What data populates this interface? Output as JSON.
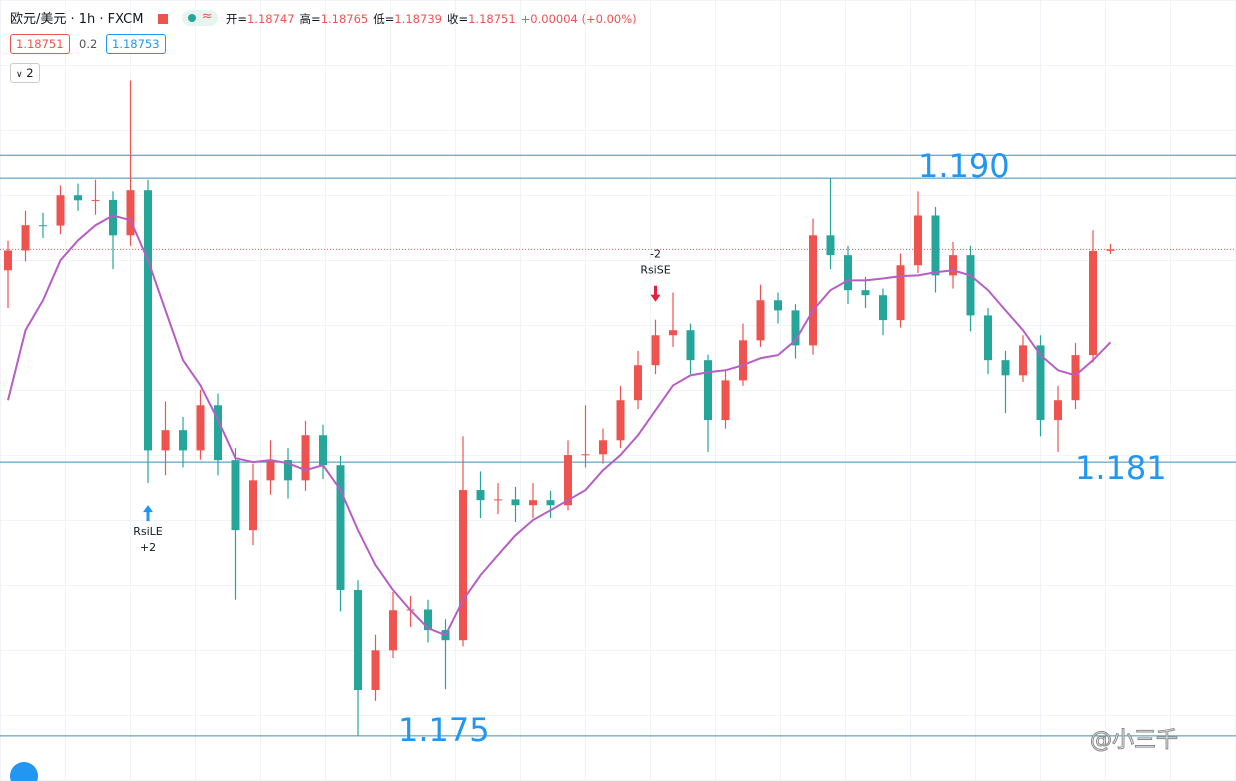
{
  "header": {
    "title": "欧元/美元 · 1h · FXCM",
    "ohlc": [
      {
        "label": "开=",
        "value": "1.18747"
      },
      {
        "label": "高=",
        "value": "1.18765"
      },
      {
        "label": "低=",
        "value": "1.18739"
      },
      {
        "label": "收=",
        "value": "1.18751"
      }
    ],
    "change": "+0.00004 (+0.00%)",
    "sell": "1.18751",
    "spread": "0.2",
    "buy": "1.18753",
    "indicators": "2"
  },
  "watermark": "@小三千",
  "chart_data": {
    "type": "candlestick",
    "ylim": [
      1.17384,
      1.19392
    ],
    "up_color": "#ef5350",
    "down_color": "#26a69a",
    "ohlc": [
      [
        1.18697,
        1.18773,
        1.186,
        1.18748
      ],
      [
        1.18748,
        1.1885,
        1.1872,
        1.18813
      ],
      [
        1.18813,
        1.18845,
        1.1878,
        1.18812
      ],
      [
        1.18812,
        1.18915,
        1.1879,
        1.1889
      ],
      [
        1.1889,
        1.1892,
        1.1885,
        1.18877
      ],
      [
        1.18877,
        1.1893,
        1.1884,
        1.18878
      ],
      [
        1.18878,
        1.189,
        1.187,
        1.18787
      ],
      [
        1.18787,
        1.19185,
        1.1876,
        1.18903
      ],
      [
        1.18903,
        1.1893,
        1.1815,
        1.18234
      ],
      [
        1.18234,
        1.1836,
        1.1817,
        1.18286
      ],
      [
        1.18286,
        1.1832,
        1.1819,
        1.18234
      ],
      [
        1.18234,
        1.1839,
        1.1821,
        1.1835
      ],
      [
        1.1835,
        1.1838,
        1.1817,
        1.18209
      ],
      [
        1.18209,
        1.1824,
        1.1785,
        1.18029
      ],
      [
        1.18029,
        1.182,
        1.1799,
        1.18157
      ],
      [
        1.18157,
        1.1826,
        1.1812,
        1.18209
      ],
      [
        1.18209,
        1.1824,
        1.1811,
        1.18157
      ],
      [
        1.18157,
        1.1831,
        1.1813,
        1.18273
      ],
      [
        1.18273,
        1.183,
        1.1816,
        1.18196
      ],
      [
        1.18196,
        1.1822,
        1.1782,
        1.17875
      ],
      [
        1.17875,
        1.179,
        1.175,
        1.17618
      ],
      [
        1.17618,
        1.1776,
        1.1759,
        1.1772
      ],
      [
        1.1772,
        1.1787,
        1.177,
        1.17823
      ],
      [
        1.17823,
        1.1786,
        1.1778,
        1.17825
      ],
      [
        1.17825,
        1.1785,
        1.1774,
        1.17772
      ],
      [
        1.17772,
        1.178,
        1.1762,
        1.17746
      ],
      [
        1.17746,
        1.1827,
        1.1773,
        1.18132
      ],
      [
        1.18132,
        1.1818,
        1.1806,
        1.18106
      ],
      [
        1.18106,
        1.1815,
        1.1807,
        1.18108
      ],
      [
        1.18108,
        1.1814,
        1.1805,
        1.18093
      ],
      [
        1.18093,
        1.1815,
        1.1806,
        1.18106
      ],
      [
        1.18106,
        1.1813,
        1.1806,
        1.18093
      ],
      [
        1.18093,
        1.1826,
        1.1808,
        1.18222
      ],
      [
        1.18222,
        1.1835,
        1.1819,
        1.18224
      ],
      [
        1.18224,
        1.1829,
        1.182,
        1.1826
      ],
      [
        1.1826,
        1.184,
        1.1824,
        1.18363
      ],
      [
        1.18363,
        1.1849,
        1.1834,
        1.18453
      ],
      [
        1.18453,
        1.1857,
        1.1843,
        1.1853
      ],
      [
        1.1853,
        1.1864,
        1.185,
        1.18543
      ],
      [
        1.18543,
        1.1856,
        1.1843,
        1.18466
      ],
      [
        1.18466,
        1.1848,
        1.1823,
        1.18312
      ],
      [
        1.18312,
        1.1844,
        1.1829,
        1.18414
      ],
      [
        1.18414,
        1.1856,
        1.184,
        1.18517
      ],
      [
        1.18517,
        1.1866,
        1.185,
        1.1862
      ],
      [
        1.1862,
        1.1864,
        1.1856,
        1.18594
      ],
      [
        1.18594,
        1.1861,
        1.1847,
        1.18504
      ],
      [
        1.18504,
        1.1883,
        1.1848,
        1.18787
      ],
      [
        1.18787,
        1.18933,
        1.187,
        1.18736
      ],
      [
        1.18736,
        1.1876,
        1.1861,
        1.18646
      ],
      [
        1.18646,
        1.1868,
        1.186,
        1.18633
      ],
      [
        1.18633,
        1.1865,
        1.1853,
        1.18569
      ],
      [
        1.18569,
        1.1874,
        1.1855,
        1.1871
      ],
      [
        1.1871,
        1.189,
        1.1869,
        1.18838
      ],
      [
        1.18838,
        1.1886,
        1.1864,
        1.18684
      ],
      [
        1.18684,
        1.1877,
        1.1865,
        1.18736
      ],
      [
        1.18736,
        1.1876,
        1.1854,
        1.18581
      ],
      [
        1.18581,
        1.186,
        1.1843,
        1.18466
      ],
      [
        1.18466,
        1.1849,
        1.1833,
        1.18427
      ],
      [
        1.18427,
        1.1853,
        1.1841,
        1.18504
      ],
      [
        1.18504,
        1.1853,
        1.1827,
        1.18312
      ],
      [
        1.18312,
        1.184,
        1.1823,
        1.18363
      ],
      [
        1.18363,
        1.1851,
        1.1834,
        1.18479
      ],
      [
        1.18479,
        1.188,
        1.1846,
        1.18747
      ],
      [
        1.18747,
        1.18765,
        1.18739,
        1.18751
      ]
    ],
    "ma": {
      "color": "#b55fc4",
      "values": [
        1.18363,
        1.18543,
        1.1862,
        1.18723,
        1.18774,
        1.18813,
        1.18838,
        1.18826,
        1.18723,
        1.18594,
        1.18466,
        1.18401,
        1.18312,
        1.18214,
        1.18204,
        1.18209,
        1.18201,
        1.18183,
        1.18196,
        1.18132,
        1.18029,
        1.17939,
        1.17875,
        1.17823,
        1.17777,
        1.17759,
        1.17849,
        1.17913,
        1.17965,
        1.18016,
        1.18055,
        1.1808,
        1.18106,
        1.18132,
        1.18183,
        1.18222,
        1.18273,
        1.18337,
        1.18401,
        1.18427,
        1.18435,
        1.1844,
        1.18453,
        1.18471,
        1.18479,
        1.18517,
        1.18594,
        1.18646,
        1.18671,
        1.18671,
        1.18676,
        1.18682,
        1.18684,
        1.18692,
        1.18697,
        1.18684,
        1.18646,
        1.18594,
        1.18543,
        1.18479,
        1.1844,
        1.18427,
        1.18466,
        1.18512
      ]
    },
    "hlines": [
      1.18993,
      1.18934,
      1.18204,
      1.175
    ],
    "hline_color": "#3d8fb5",
    "annotations": [
      "1.190",
      "1.181",
      "1.175"
    ],
    "signals": [
      {
        "name": "RsiLE",
        "qty": "+2",
        "color": "#2196f3"
      },
      {
        "name": "RsiSE",
        "qty": "-2",
        "color": "#e91e3c"
      }
    ]
  }
}
